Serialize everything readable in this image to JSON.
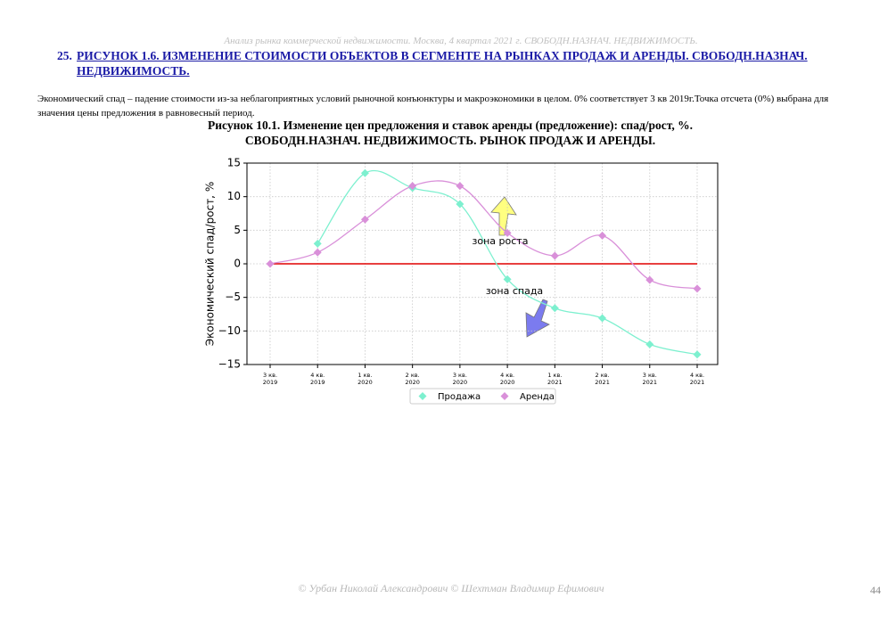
{
  "header": "Анализ рынка коммерческой недвижимости.  Москва,  4 квартал 2021 г.  СВОБОДН.НАЗНАЧ. НЕДВИЖИМОСТЬ.",
  "heading": {
    "number": "25.",
    "text": "РИСУНОК 1.6. ИЗМЕНЕНИЕ СТОИМОСТИ ОБЪЕКТОВ В СЕГМЕНТЕ НА РЫНКАХ ПРОДАЖ И АРЕНДЫ. СВОБОДН.НАЗНАЧ. НЕДВИЖИМОСТЬ."
  },
  "paragraph": "Экономический спад – падение стоимости из-за неблагоприятных условий рыночной конъюнктуры и макроэкономики в целом. 0% соответствует 3 кв 2019г.Точка отсчета (0%) выбрана для значения цены предложения в равновесный период.",
  "figure_title": [
    "Рисунок 10.1. Изменение цен предложения и ставок аренды (предложение): спад/рост, %.",
    "СВОБОДН.НАЗНАЧ. НЕДВИЖИМОСТЬ. РЫНОК ПРОДАЖ И АРЕНДЫ."
  ],
  "chart_data": {
    "type": "line",
    "smooth": true,
    "marker": "diamond",
    "ylabel": "Экономический спад/рост, %",
    "categories": [
      "3 кв. 2019",
      "4 кв. 2019",
      "1 кв. 2020",
      "2 кв. 2020",
      "3 кв. 2020",
      "4 кв. 2020",
      "1 кв. 2021",
      "2 кв. 2021",
      "3 кв. 2021",
      "4 кв. 2021"
    ],
    "series": [
      {
        "name": "Продажа",
        "color": "#7df0cf",
        "values": [
          null,
          3,
          13.5,
          11.3,
          8.9,
          -2.3,
          -6.6,
          -8.1,
          -12,
          -13.5
        ]
      },
      {
        "name": "Аренда",
        "color": "#d990d9",
        "values": [
          0,
          1.7,
          6.6,
          11.6,
          11.6,
          4.6,
          1.2,
          4.2,
          -2.4,
          -3.7
        ]
      }
    ],
    "reference_line": {
      "value": 0,
      "color": "#e00000"
    },
    "ylim": [
      -15,
      15
    ],
    "yticks": [
      {
        "value": -15,
        "label": "−15"
      },
      {
        "value": -10,
        "label": "−10"
      },
      {
        "value": -5,
        "label": "−5"
      },
      0,
      5,
      10,
      15
    ],
    "grid": true,
    "legend": "below",
    "annotations": [
      "зона роста",
      "зона спада"
    ]
  },
  "footer": "© Урбан Николай Александрович   © Шехтман Владимир Ефимович",
  "page_number": "44"
}
